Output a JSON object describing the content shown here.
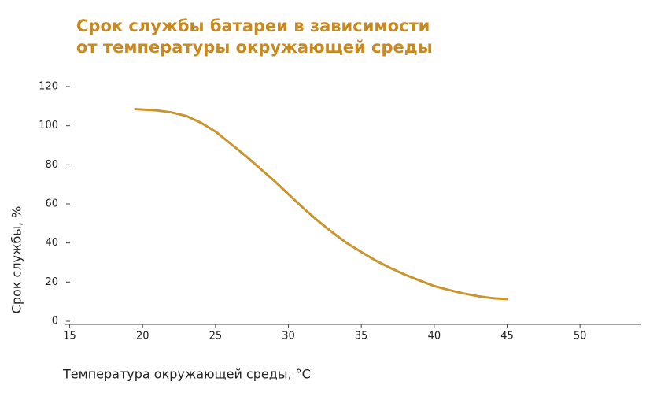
{
  "chart_data": {
    "type": "line",
    "title": [
      "Срок службы батареи в зависимости",
      "от температуры окружающей среды"
    ],
    "x_label": "Температура окружающей среды, °С",
    "y_label": "Срок службы, %",
    "x": [
      19.5,
      20,
      21,
      22,
      23,
      24,
      25,
      26,
      27,
      28,
      29,
      30,
      31,
      32,
      33,
      34,
      35,
      36,
      37,
      38,
      39,
      40,
      41,
      42,
      43,
      44,
      45
    ],
    "values": [
      108.5,
      108.3,
      107.8,
      106.8,
      105,
      101.5,
      97,
      91,
      85,
      78.5,
      72,
      65,
      58,
      51.5,
      45.5,
      40,
      35.4,
      31,
      27.2,
      23.8,
      20.8,
      18,
      16,
      14.2,
      12.8,
      11.8,
      11.3
    ],
    "color": "#c9952e",
    "xlim": [
      14.7,
      54.2
    ],
    "xticks": [
      15,
      20,
      25,
      30,
      35,
      40,
      45,
      50
    ],
    "ylim": [
      0,
      120
    ],
    "yticks": [
      0,
      20,
      40,
      60,
      80,
      100,
      120
    ]
  }
}
